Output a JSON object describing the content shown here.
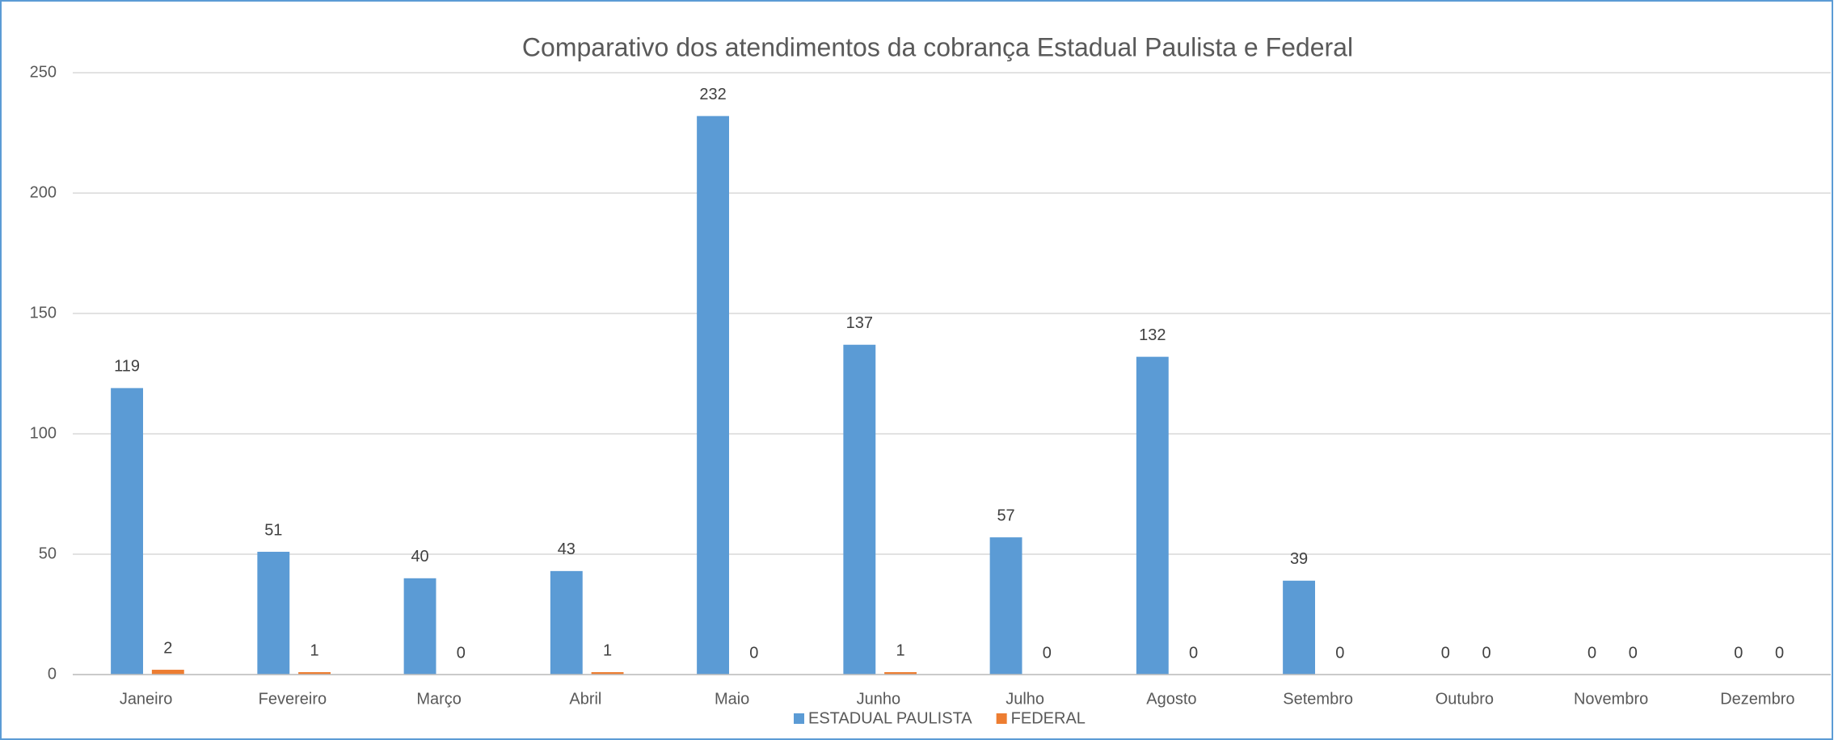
{
  "chart_data": {
    "type": "bar",
    "title": "Comparativo dos atendimentos da cobrança Estadual Paulista e Federal",
    "categories": [
      "Janeiro",
      "Fevereiro",
      "Março",
      "Abril",
      "Maio",
      "Junho",
      "Julho",
      "Agosto",
      "Setembro",
      "Outubro",
      "Novembro",
      "Dezembro"
    ],
    "series": [
      {
        "name": "ESTADUAL PAULISTA",
        "color": "#5b9bd5",
        "values": [
          119,
          51,
          40,
          43,
          232,
          137,
          57,
          132,
          39,
          0,
          0,
          0
        ]
      },
      {
        "name": "FEDERAL",
        "color": "#ed7d31",
        "values": [
          2,
          1,
          0,
          1,
          0,
          1,
          0,
          0,
          0,
          0,
          0,
          0
        ]
      }
    ],
    "ylim": [
      0,
      250
    ],
    "yticks": [
      0,
      50,
      100,
      150,
      200,
      250
    ],
    "grid": true,
    "legend": "bottom"
  }
}
